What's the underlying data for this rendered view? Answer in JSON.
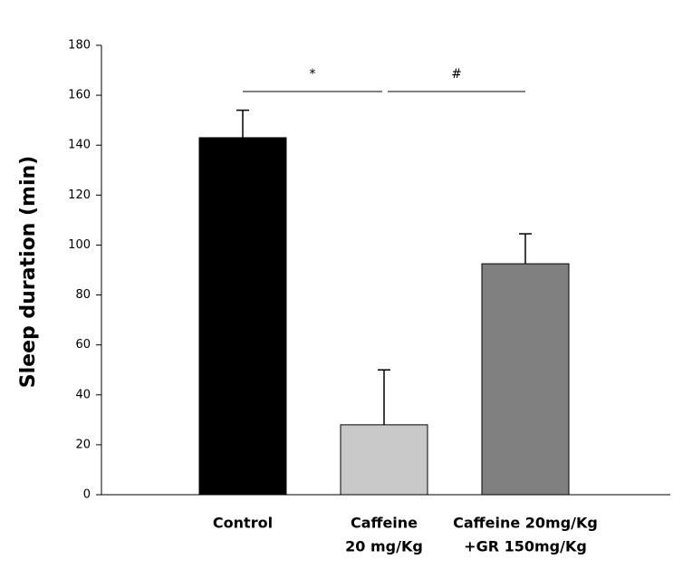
{
  "chart_data": {
    "type": "bar",
    "y_label": "Sleep duration (min)",
    "categories": [
      [
        "Control"
      ],
      [
        "Caffeine",
        "20 mg/Kg"
      ],
      [
        "Caffeine 20mg/Kg",
        "+GR 150mg/Kg"
      ]
    ],
    "values": [
      143,
      28,
      92.5
    ],
    "errors": [
      11,
      22,
      12
    ],
    "colors": [
      "#000000",
      "#c8c8c8",
      "#808080"
    ],
    "ylim": [
      0,
      180
    ],
    "yticks": [
      0,
      20,
      40,
      60,
      80,
      100,
      120,
      140,
      160,
      180
    ],
    "annotations": [
      {
        "text": "*",
        "between": [
          0,
          1
        ]
      },
      {
        "text": "#",
        "between": [
          1,
          2
        ]
      }
    ]
  }
}
